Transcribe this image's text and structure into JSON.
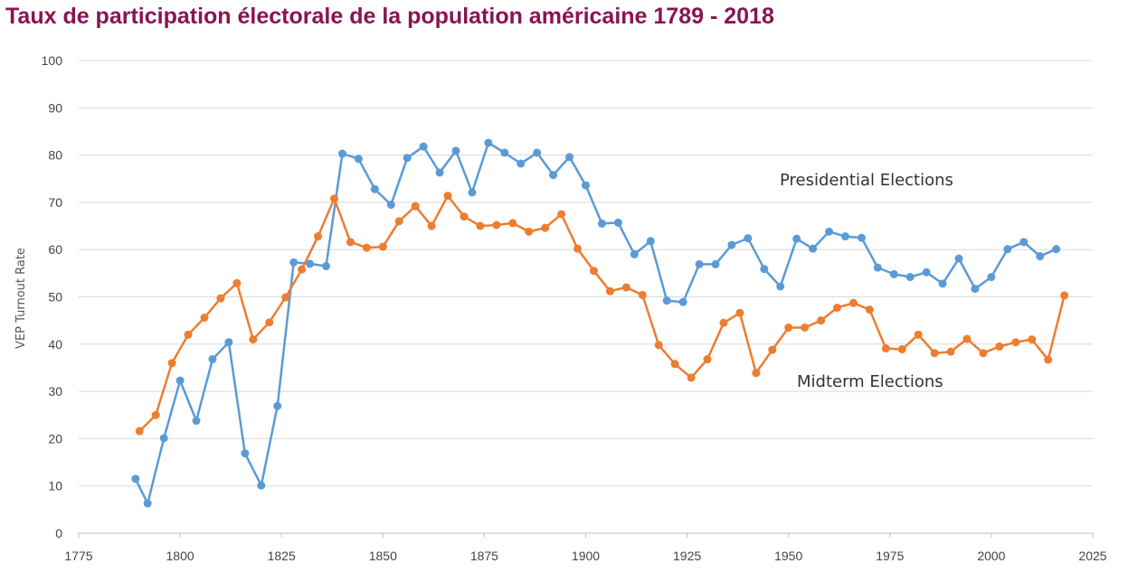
{
  "title": "Taux de participation électorale de la population américaine 1789 - 2018",
  "chart_data": {
    "type": "line",
    "title": "Taux de participation électorale de la population américaine 1789 - 2018",
    "xlabel": "",
    "ylabel": "VEP Turnout Rate",
    "xlim": [
      1775,
      2025
    ],
    "ylim": [
      0,
      100
    ],
    "x_ticks": [
      1775,
      1800,
      1825,
      1850,
      1875,
      1900,
      1925,
      1950,
      1975,
      2000,
      2025
    ],
    "y_ticks": [
      0,
      10,
      20,
      30,
      40,
      50,
      60,
      70,
      80,
      90,
      100
    ],
    "grid": true,
    "legend": "none",
    "series": [
      {
        "name": "Presidential Elections",
        "color": "#5b9bd5",
        "x": [
          1789,
          1792,
          1796,
          1800,
          1804,
          1808,
          1812,
          1816,
          1820,
          1824,
          1828,
          1832,
          1836,
          1840,
          1844,
          1848,
          1852,
          1856,
          1860,
          1864,
          1868,
          1872,
          1876,
          1880,
          1884,
          1888,
          1892,
          1896,
          1900,
          1904,
          1908,
          1912,
          1916,
          1920,
          1924,
          1928,
          1932,
          1936,
          1940,
          1944,
          1948,
          1952,
          1956,
          1960,
          1964,
          1968,
          1972,
          1976,
          1980,
          1984,
          1988,
          1992,
          1996,
          2000,
          2004,
          2008,
          2012,
          2016
        ],
        "y": [
          11.5,
          6.3,
          20.1,
          32.3,
          23.8,
          36.8,
          40.4,
          16.9,
          10.1,
          26.9,
          57.3,
          57.0,
          56.5,
          80.3,
          79.2,
          72.8,
          69.5,
          79.4,
          81.8,
          76.3,
          80.9,
          72.1,
          82.6,
          80.5,
          78.2,
          80.5,
          75.8,
          79.6,
          73.6,
          65.5,
          65.7,
          59.0,
          61.8,
          49.2,
          48.9,
          56.9,
          56.9,
          61.0,
          62.4,
          55.9,
          52.2,
          62.3,
          60.2,
          63.8,
          62.8,
          62.5,
          56.2,
          54.8,
          54.2,
          55.2,
          52.8,
          58.1,
          51.7,
          54.2,
          60.1,
          61.6,
          58.6,
          60.1
        ]
      },
      {
        "name": "Midterm Elections",
        "color": "#ed7d31",
        "x": [
          1790,
          1794,
          1798,
          1802,
          1806,
          1810,
          1814,
          1818,
          1822,
          1826,
          1830,
          1834,
          1838,
          1842,
          1846,
          1850,
          1854,
          1858,
          1862,
          1866,
          1870,
          1874,
          1878,
          1882,
          1886,
          1890,
          1894,
          1898,
          1902,
          1906,
          1910,
          1914,
          1918,
          1922,
          1926,
          1930,
          1934,
          1938,
          1942,
          1946,
          1950,
          1954,
          1958,
          1962,
          1966,
          1970,
          1974,
          1978,
          1982,
          1986,
          1990,
          1994,
          1998,
          2002,
          2006,
          2010,
          2014,
          2018
        ],
        "y": [
          21.6,
          25.0,
          36.0,
          42.0,
          45.6,
          49.7,
          52.9,
          41.0,
          44.6,
          49.9,
          55.8,
          62.8,
          70.8,
          61.6,
          60.4,
          60.6,
          66.0,
          69.2,
          65.0,
          71.4,
          67.0,
          65.0,
          65.2,
          65.6,
          63.8,
          64.6,
          67.5,
          60.2,
          55.5,
          51.2,
          52.0,
          50.4,
          39.8,
          35.8,
          32.9,
          36.8,
          44.5,
          46.6,
          33.9,
          38.8,
          43.5,
          43.5,
          45.0,
          47.7,
          48.7,
          47.3,
          39.1,
          38.9,
          42.0,
          38.1,
          38.4,
          41.1,
          38.1,
          39.5,
          40.4,
          41.0,
          36.7,
          50.3
        ]
      }
    ]
  }
}
